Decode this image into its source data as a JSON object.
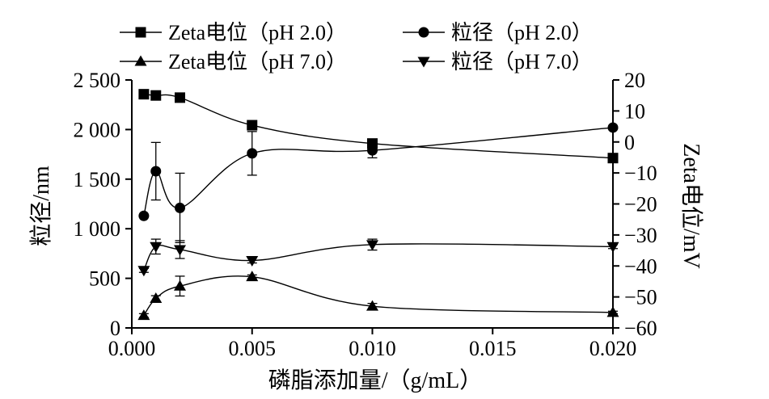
{
  "chart_data": {
    "type": "line",
    "xlabel": "磷脂添加量/（g/mL）",
    "ylabel": "粒径/nm",
    "y2label": "Zeta电位/mV",
    "xlim": [
      0,
      0.02
    ],
    "ylim": [
      0,
      2500
    ],
    "y2lim": [
      -60,
      20
    ],
    "x_ticks": [
      "0.000",
      "0.005",
      "0.010",
      "0.015",
      "0.020"
    ],
    "y_ticks": [
      "0",
      "500",
      "1 000",
      "1 500",
      "2 000",
      "2 500"
    ],
    "y2_ticks": [
      "20",
      "10",
      "0",
      "−10",
      "−20",
      "−30",
      "−40",
      "−50",
      "−60"
    ],
    "legend_position": "top",
    "series": [
      {
        "name": "Zeta电位（pH 2.0）",
        "axis": "right",
        "marker": "square",
        "x": [
          0.0005,
          0.001,
          0.002,
          0.005,
          0.01,
          0.02
        ],
        "y": [
          15.4,
          15.0,
          14.3,
          5.4,
          -0.5,
          -5.2
        ],
        "err": [
          0,
          0,
          0,
          0,
          0.9,
          0
        ]
      },
      {
        "name": "粒径（pH 2.0）",
        "axis": "left",
        "marker": "circle",
        "x": [
          0.0005,
          0.001,
          0.002,
          0.005,
          0.01,
          0.02
        ],
        "y": [
          1130,
          1580,
          1210,
          1760,
          1790,
          2020
        ],
        "err": [
          0,
          290,
          350,
          220,
          75,
          0
        ]
      },
      {
        "name": "Zeta电位（pH 7.0）",
        "axis": "right",
        "marker": "triangle-up",
        "x": [
          0.0005,
          0.001,
          0.002,
          0.005,
          0.01,
          0.02
        ],
        "y": [
          -56.0,
          -50.5,
          -46.5,
          -43.5,
          -53.0,
          -55.0
        ],
        "err": [
          0.6,
          0.9,
          3.2,
          0.6,
          0.9,
          0.4
        ]
      },
      {
        "name": "粒径（pH 7.0）",
        "axis": "left",
        "marker": "triangle-down",
        "x": [
          0.0005,
          0.001,
          0.002,
          0.005,
          0.01,
          0.02
        ],
        "y": [
          580,
          820,
          790,
          680,
          840,
          820
        ],
        "err": [
          20,
          75,
          90,
          25,
          55,
          20
        ]
      }
    ]
  }
}
